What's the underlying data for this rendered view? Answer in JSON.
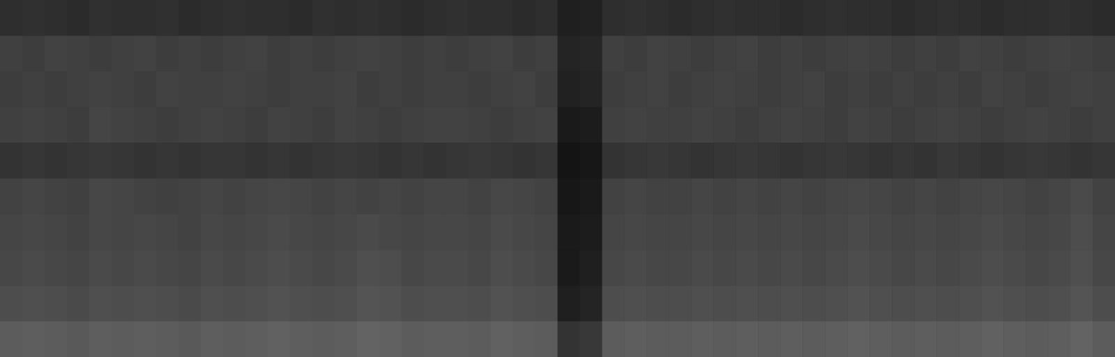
{
  "chart_data": {
    "type": "heatmap",
    "tick_labels": false,
    "zlim": [
      0,
      100
    ],
    "cells": [
      [
        18,
        19,
        18,
        17,
        19,
        18,
        18,
        19,
        17,
        18,
        19,
        18,
        18,
        17,
        19,
        18,
        19,
        18,
        17,
        18,
        19,
        18,
        18,
        17,
        18,
        12,
        13,
        18,
        19,
        18,
        17,
        18,
        19,
        18,
        18,
        17,
        18,
        19,
        18,
        18,
        17,
        18,
        19,
        18,
        17,
        18,
        18,
        19,
        18,
        17
      ],
      [
        25,
        24,
        26,
        25,
        24,
        25,
        26,
        24,
        25,
        24,
        25,
        26,
        24,
        25,
        24,
        25,
        26,
        25,
        24,
        25,
        24,
        25,
        26,
        24,
        25,
        14,
        15,
        25,
        24,
        26,
        25,
        24,
        25,
        26,
        24,
        25,
        24,
        25,
        26,
        25,
        24,
        25,
        24,
        26,
        25,
        24,
        25,
        26,
        25,
        24
      ],
      [
        24,
        25,
        24,
        25,
        26,
        25,
        24,
        26,
        25,
        25,
        26,
        25,
        24,
        25,
        25,
        26,
        24,
        25,
        24,
        25,
        25,
        24,
        25,
        26,
        24,
        13,
        14,
        24,
        25,
        26,
        24,
        25,
        26,
        25,
        24,
        25,
        26,
        24,
        25,
        24,
        25,
        24,
        25,
        24,
        26,
        25,
        24,
        25,
        26,
        25
      ],
      [
        25,
        26,
        25,
        24,
        27,
        26,
        25,
        24,
        25,
        26,
        25,
        24,
        26,
        25,
        24,
        26,
        25,
        24,
        25,
        26,
        26,
        25,
        24,
        25,
        26,
        10,
        11,
        25,
        26,
        25,
        25,
        26,
        25,
        24,
        25,
        26,
        25,
        24,
        26,
        25,
        24,
        25,
        26,
        25,
        24,
        25,
        26,
        25,
        24,
        25
      ],
      [
        20,
        21,
        20,
        21,
        22,
        21,
        20,
        21,
        20,
        21,
        21,
        20,
        21,
        20,
        21,
        22,
        21,
        20,
        21,
        20,
        21,
        22,
        21,
        20,
        21,
        8,
        9,
        20,
        21,
        22,
        21,
        20,
        21,
        22,
        21,
        20,
        21,
        22,
        21,
        20,
        21,
        20,
        22,
        21,
        20,
        21,
        22,
        21,
        20,
        21
      ],
      [
        26,
        27,
        26,
        25,
        28,
        27,
        26,
        25,
        26,
        27,
        26,
        27,
        28,
        27,
        26,
        27,
        26,
        27,
        26,
        27,
        27,
        26,
        28,
        27,
        26,
        9,
        10,
        26,
        27,
        26,
        26,
        27,
        26,
        27,
        26,
        27,
        26,
        27,
        28,
        27,
        26,
        27,
        26,
        27,
        28,
        27,
        26,
        27,
        29,
        26
      ],
      [
        27,
        28,
        27,
        26,
        28,
        27,
        28,
        27,
        26,
        28,
        27,
        28,
        29,
        28,
        27,
        28,
        29,
        28,
        27,
        28,
        28,
        27,
        29,
        28,
        27,
        10,
        11,
        27,
        28,
        27,
        27,
        28,
        27,
        28,
        27,
        28,
        27,
        28,
        29,
        28,
        27,
        28,
        27,
        28,
        29,
        28,
        27,
        28,
        30,
        27
      ],
      [
        28,
        29,
        28,
        27,
        29,
        28,
        29,
        28,
        27,
        29,
        28,
        29,
        30,
        29,
        28,
        29,
        31,
        30,
        28,
        29,
        29,
        28,
        30,
        29,
        28,
        10,
        12,
        28,
        29,
        28,
        28,
        29,
        28,
        29,
        28,
        29,
        28,
        29,
        30,
        29,
        28,
        29,
        28,
        29,
        30,
        29,
        28,
        29,
        31,
        28
      ],
      [
        30,
        31,
        30,
        29,
        31,
        30,
        31,
        30,
        29,
        31,
        30,
        31,
        32,
        31,
        30,
        31,
        33,
        32,
        30,
        31,
        31,
        30,
        32,
        31,
        30,
        12,
        14,
        30,
        31,
        30,
        30,
        31,
        30,
        31,
        30,
        31,
        30,
        31,
        32,
        31,
        30,
        31,
        30,
        31,
        32,
        31,
        30,
        31,
        33,
        30
      ],
      [
        36,
        37,
        36,
        35,
        37,
        36,
        37,
        36,
        35,
        37,
        36,
        37,
        38,
        37,
        36,
        37,
        39,
        38,
        36,
        37,
        37,
        36,
        38,
        37,
        36,
        20,
        22,
        36,
        37,
        36,
        36,
        37,
        36,
        37,
        36,
        37,
        36,
        37,
        38,
        37,
        36,
        37,
        36,
        37,
        38,
        37,
        36,
        37,
        39,
        36
      ]
    ]
  }
}
